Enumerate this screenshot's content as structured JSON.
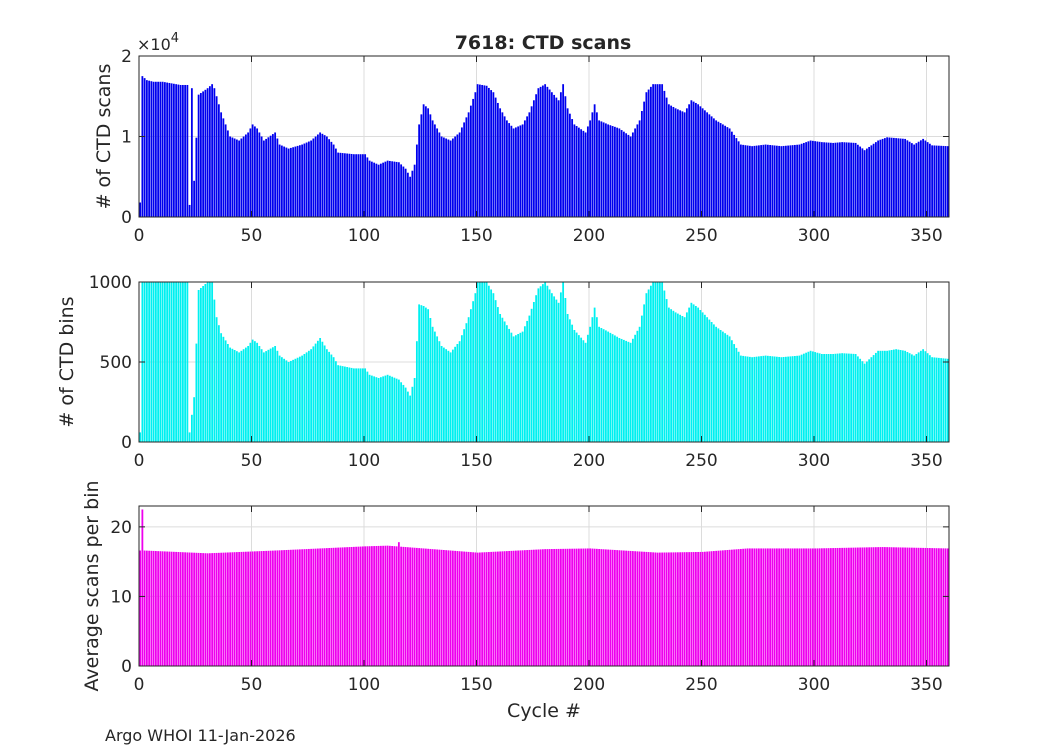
{
  "title": "7618: CTD scans",
  "footer": "Argo WHOI 11-Jan-2026",
  "colors": {
    "scans": "#0000ee",
    "bins": "#00f0f0",
    "avg": "#ee00ee",
    "axis": "#262626"
  },
  "chart_data": [
    {
      "type": "bar",
      "title": "7618: CTD scans",
      "xlabel": "",
      "ylabel": "# of CTD scans",
      "exponent_label": "×10",
      "exponent_power": "4",
      "xlim": [
        0,
        360
      ],
      "ylim": [
        0,
        20000
      ],
      "x_ticks": [
        0,
        50,
        100,
        150,
        200,
        250,
        300,
        350
      ],
      "y_ticks": [
        0,
        10000,
        20000
      ],
      "y_tick_labels": [
        "0",
        "1",
        "2"
      ],
      "grid": true,
      "color": "#0000ee",
      "anchors": [
        [
          0,
          1800
        ],
        [
          1,
          17500
        ],
        [
          3,
          17000
        ],
        [
          6,
          16800
        ],
        [
          10,
          16800
        ],
        [
          14,
          16600
        ],
        [
          18,
          16400
        ],
        [
          21,
          16400
        ],
        [
          22,
          1500
        ],
        [
          23,
          16000
        ],
        [
          24,
          4500
        ],
        [
          26,
          15200
        ],
        [
          30,
          16000
        ],
        [
          32,
          16500
        ],
        [
          33,
          16000
        ],
        [
          36,
          13000
        ],
        [
          38,
          11500
        ],
        [
          40,
          10000
        ],
        [
          44,
          9500
        ],
        [
          48,
          10500
        ],
        [
          50,
          11500
        ],
        [
          52,
          11000
        ],
        [
          55,
          9500
        ],
        [
          60,
          10500
        ],
        [
          62,
          9000
        ],
        [
          66,
          8500
        ],
        [
          72,
          9000
        ],
        [
          76,
          9500
        ],
        [
          80,
          10500
        ],
        [
          83,
          10000
        ],
        [
          86,
          9000
        ],
        [
          88,
          8000
        ],
        [
          95,
          7800
        ],
        [
          100,
          7800
        ],
        [
          102,
          7000
        ],
        [
          106,
          6500
        ],
        [
          110,
          7000
        ],
        [
          115,
          6800
        ],
        [
          118,
          6000
        ],
        [
          120,
          5000
        ],
        [
          122,
          6500
        ],
        [
          124,
          11500
        ],
        [
          126,
          14000
        ],
        [
          128,
          13500
        ],
        [
          130,
          12000
        ],
        [
          134,
          10000
        ],
        [
          138,
          9500
        ],
        [
          142,
          10500
        ],
        [
          146,
          13000
        ],
        [
          149,
          15500
        ],
        [
          150,
          16500
        ],
        [
          154,
          16300
        ],
        [
          157,
          15500
        ],
        [
          160,
          13500
        ],
        [
          163,
          12000
        ],
        [
          166,
          11000
        ],
        [
          170,
          11500
        ],
        [
          173,
          13000
        ],
        [
          177,
          16000
        ],
        [
          180,
          16500
        ],
        [
          183,
          15500
        ],
        [
          186,
          14500
        ],
        [
          188,
          16500
        ],
        [
          190,
          13500
        ],
        [
          193,
          11500
        ],
        [
          198,
          10500
        ],
        [
          200,
          12000
        ],
        [
          202,
          14000
        ],
        [
          204,
          12000
        ],
        [
          208,
          11500
        ],
        [
          213,
          11000
        ],
        [
          218,
          10000
        ],
        [
          222,
          12000
        ],
        [
          225,
          15500
        ],
        [
          228,
          16500
        ],
        [
          232,
          16500
        ],
        [
          235,
          14000
        ],
        [
          238,
          13500
        ],
        [
          242,
          13000
        ],
        [
          245,
          14500
        ],
        [
          248,
          14000
        ],
        [
          252,
          13000
        ],
        [
          256,
          12000
        ],
        [
          262,
          11000
        ],
        [
          267,
          9000
        ],
        [
          272,
          8800
        ],
        [
          278,
          9000
        ],
        [
          285,
          8800
        ],
        [
          293,
          9000
        ],
        [
          298,
          9500
        ],
        [
          303,
          9300
        ],
        [
          308,
          9200
        ],
        [
          312,
          9300
        ],
        [
          318,
          9200
        ],
        [
          322,
          8300
        ],
        [
          328,
          9500
        ],
        [
          332,
          9900
        ],
        [
          336,
          9800
        ],
        [
          340,
          9700
        ],
        [
          344,
          9000
        ],
        [
          348,
          9700
        ],
        [
          352,
          8900
        ],
        [
          359,
          8800
        ]
      ],
      "spikes": []
    },
    {
      "type": "bar",
      "title": "",
      "xlabel": "",
      "ylabel": "# of CTD bins",
      "xlim": [
        0,
        360
      ],
      "ylim": [
        0,
        1000
      ],
      "x_ticks": [
        0,
        50,
        100,
        150,
        200,
        250,
        300,
        350
      ],
      "y_ticks": [
        0,
        500,
        1000
      ],
      "y_tick_labels": [
        "0",
        "500",
        "1000"
      ],
      "grid": true,
      "color": "#00f0f0",
      "anchors": [
        [
          0,
          60
        ],
        [
          1,
          1000
        ],
        [
          21,
          1000
        ],
        [
          22,
          60
        ],
        [
          24,
          280
        ],
        [
          26,
          950
        ],
        [
          30,
          1000
        ],
        [
          32,
          1000
        ],
        [
          34,
          780
        ],
        [
          36,
          680
        ],
        [
          40,
          590
        ],
        [
          44,
          560
        ],
        [
          48,
          600
        ],
        [
          50,
          640
        ],
        [
          52,
          620
        ],
        [
          55,
          560
        ],
        [
          60,
          600
        ],
        [
          62,
          540
        ],
        [
          66,
          500
        ],
        [
          72,
          540
        ],
        [
          76,
          580
        ],
        [
          80,
          650
        ],
        [
          83,
          580
        ],
        [
          86,
          530
        ],
        [
          88,
          480
        ],
        [
          95,
          460
        ],
        [
          100,
          460
        ],
        [
          102,
          420
        ],
        [
          106,
          400
        ],
        [
          110,
          420
        ],
        [
          115,
          390
        ],
        [
          118,
          340
        ],
        [
          120,
          290
        ],
        [
          122,
          400
        ],
        [
          124,
          860
        ],
        [
          126,
          850
        ],
        [
          128,
          830
        ],
        [
          130,
          720
        ],
        [
          134,
          600
        ],
        [
          138,
          560
        ],
        [
          142,
          630
        ],
        [
          146,
          780
        ],
        [
          149,
          930
        ],
        [
          150,
          1000
        ],
        [
          154,
          1000
        ],
        [
          157,
          930
        ],
        [
          160,
          800
        ],
        [
          163,
          730
        ],
        [
          166,
          660
        ],
        [
          170,
          690
        ],
        [
          173,
          790
        ],
        [
          177,
          960
        ],
        [
          180,
          1000
        ],
        [
          183,
          930
        ],
        [
          186,
          870
        ],
        [
          188,
          1000
        ],
        [
          190,
          800
        ],
        [
          193,
          700
        ],
        [
          198,
          620
        ],
        [
          200,
          720
        ],
        [
          202,
          840
        ],
        [
          204,
          720
        ],
        [
          208,
          690
        ],
        [
          213,
          650
        ],
        [
          218,
          620
        ],
        [
          222,
          720
        ],
        [
          225,
          930
        ],
        [
          228,
          1000
        ],
        [
          232,
          1000
        ],
        [
          235,
          840
        ],
        [
          238,
          810
        ],
        [
          242,
          780
        ],
        [
          245,
          870
        ],
        [
          248,
          840
        ],
        [
          252,
          780
        ],
        [
          256,
          720
        ],
        [
          262,
          660
        ],
        [
          267,
          540
        ],
        [
          272,
          530
        ],
        [
          278,
          540
        ],
        [
          285,
          530
        ],
        [
          293,
          540
        ],
        [
          298,
          570
        ],
        [
          303,
          550
        ],
        [
          308,
          550
        ],
        [
          312,
          555
        ],
        [
          318,
          550
        ],
        [
          322,
          490
        ],
        [
          328,
          570
        ],
        [
          332,
          570
        ],
        [
          336,
          580
        ],
        [
          340,
          570
        ],
        [
          344,
          540
        ],
        [
          348,
          580
        ],
        [
          352,
          530
        ],
        [
          359,
          520
        ]
      ],
      "spikes": []
    },
    {
      "type": "bar",
      "title": "",
      "xlabel": "Cycle #",
      "ylabel": "Average scans per bin",
      "xlim": [
        0,
        360
      ],
      "ylim": [
        0,
        23
      ],
      "x_ticks": [
        0,
        50,
        100,
        150,
        200,
        250,
        300,
        350
      ],
      "y_ticks": [
        0,
        10,
        20
      ],
      "y_tick_labels": [
        "0",
        "10",
        "20"
      ],
      "grid": true,
      "color": "#ee00ee",
      "anchors": [
        [
          0,
          16.6
        ],
        [
          2,
          16.6
        ],
        [
          30,
          16.2
        ],
        [
          60,
          16.6
        ],
        [
          100,
          17.2
        ],
        [
          110,
          17.3
        ],
        [
          130,
          16.8
        ],
        [
          150,
          16.3
        ],
        [
          180,
          16.8
        ],
        [
          200,
          16.9
        ],
        [
          230,
          16.3
        ],
        [
          250,
          16.4
        ],
        [
          270,
          16.9
        ],
        [
          300,
          16.9
        ],
        [
          330,
          17.1
        ],
        [
          359,
          16.9
        ]
      ],
      "spikes": [
        [
          1,
          22.5
        ],
        [
          115,
          17.8
        ]
      ]
    }
  ]
}
